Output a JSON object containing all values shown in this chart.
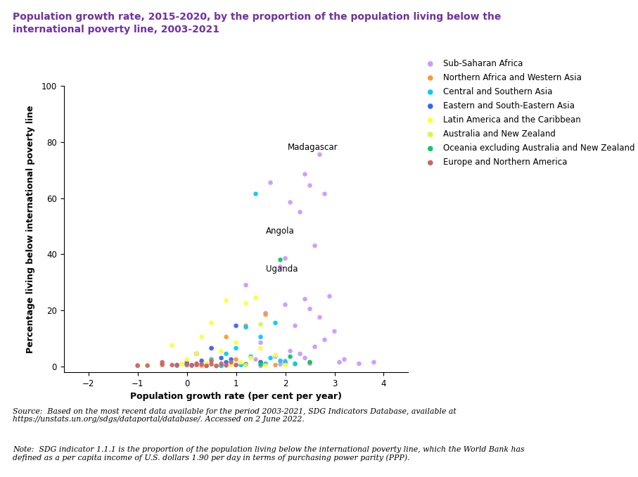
{
  "title": "Population growth rate, 2015-2020, by the proportion of the population living below the\ninternational poverty line, 2003-2021",
  "xlabel": "Population growth rate (per cent per year)",
  "ylabel": "Percentage living below international poverty line",
  "xlim": [
    -2.5,
    4.5
  ],
  "ylim": [
    -2,
    100
  ],
  "xticks": [
    -2,
    -1,
    0,
    1,
    2,
    3,
    4
  ],
  "yticks": [
    0,
    20,
    40,
    60,
    80,
    100
  ],
  "title_color": "#7030A0",
  "source_text": "Source:  Based on the most recent data available for the period 2003-2021, SDG Indicators Database, available at\nhttps://unstats.un.org/sdgs/dataportal/database/. Accessed on 2 June 2022.",
  "note_text": "Note:  SDG indicator 1.1.1 is the proportion of the population living below the international poverty line, which the World Bank has\ndefined as a per capita income of U.S. dollars 1.90 per day in terms of purchasing power parity (PPP).",
  "regions": {
    "Sub-Saharan Africa": {
      "color": "#CC99FF",
      "points": [
        [
          2.7,
          75.5
        ],
        [
          2.4,
          68.5
        ],
        [
          2.5,
          64.5
        ],
        [
          2.8,
          61.5
        ],
        [
          1.7,
          65.5
        ],
        [
          2.1,
          58.5
        ],
        [
          2.3,
          55.0
        ],
        [
          2.6,
          43.0
        ],
        [
          2.0,
          38.5
        ],
        [
          1.9,
          35.5
        ],
        [
          2.9,
          25.0
        ],
        [
          2.4,
          24.0
        ],
        [
          2.0,
          22.0
        ],
        [
          2.5,
          20.5
        ],
        [
          1.6,
          19.0
        ],
        [
          2.7,
          17.5
        ],
        [
          2.2,
          14.5
        ],
        [
          3.0,
          12.5
        ],
        [
          2.8,
          9.5
        ],
        [
          1.5,
          8.5
        ],
        [
          2.6,
          7.0
        ],
        [
          2.1,
          5.5
        ],
        [
          2.3,
          4.5
        ],
        [
          1.8,
          3.5
        ],
        [
          2.4,
          3.0
        ],
        [
          1.4,
          2.5
        ],
        [
          2.0,
          2.0
        ],
        [
          3.1,
          1.5
        ],
        [
          2.5,
          1.0
        ],
        [
          1.9,
          0.8
        ],
        [
          1.0,
          0.5
        ],
        [
          0.8,
          0.3
        ],
        [
          1.2,
          29.0
        ],
        [
          1.5,
          0.2
        ],
        [
          3.5,
          1.0
        ],
        [
          3.8,
          1.5
        ],
        [
          3.2,
          2.5
        ]
      ]
    },
    "Northern Africa and Western Asia": {
      "color": "#FF9933",
      "points": [
        [
          1.6,
          18.5
        ],
        [
          1.2,
          14.5
        ],
        [
          0.8,
          10.5
        ],
        [
          0.5,
          6.5
        ],
        [
          0.2,
          4.5
        ],
        [
          1.0,
          2.5
        ],
        [
          1.5,
          1.5
        ],
        [
          2.0,
          1.0
        ],
        [
          0.0,
          1.5
        ],
        [
          -0.5,
          0.5
        ],
        [
          0.3,
          0.3
        ],
        [
          1.8,
          0.5
        ],
        [
          2.5,
          1.5
        ],
        [
          2.2,
          0.8
        ],
        [
          -1.0,
          0.3
        ],
        [
          0.7,
          0.2
        ]
      ]
    },
    "Central and Southern Asia": {
      "color": "#00CCFF",
      "points": [
        [
          1.4,
          61.5
        ],
        [
          1.8,
          15.5
        ],
        [
          1.2,
          14.0
        ],
        [
          1.5,
          10.5
        ],
        [
          1.0,
          6.5
        ],
        [
          0.8,
          4.5
        ],
        [
          1.3,
          3.5
        ],
        [
          0.5,
          2.5
        ],
        [
          1.9,
          2.0
        ],
        [
          2.0,
          1.5
        ],
        [
          1.6,
          1.0
        ],
        [
          1.1,
          0.5
        ],
        [
          0.7,
          0.3
        ],
        [
          2.2,
          1.0
        ],
        [
          1.7,
          3.0
        ]
      ]
    },
    "Eastern and South-Eastern Asia": {
      "color": "#3366FF",
      "points": [
        [
          1.0,
          14.5
        ],
        [
          0.5,
          6.5
        ],
        [
          0.2,
          4.5
        ],
        [
          0.7,
          3.0
        ],
        [
          0.3,
          2.0
        ],
        [
          0.8,
          1.5
        ],
        [
          0.0,
          1.0
        ],
        [
          -0.2,
          0.5
        ],
        [
          0.4,
          0.3
        ],
        [
          1.2,
          0.8
        ],
        [
          0.6,
          0.2
        ],
        [
          1.5,
          1.5
        ],
        [
          0.9,
          2.5
        ],
        [
          0.1,
          0.5
        ]
      ]
    },
    "Latin America and the Caribbean": {
      "color": "#FFFF33",
      "points": [
        [
          -0.3,
          7.5
        ],
        [
          0.8,
          23.5
        ],
        [
          1.2,
          22.5
        ],
        [
          0.5,
          15.5
        ],
        [
          0.3,
          10.5
        ],
        [
          1.0,
          8.5
        ],
        [
          1.5,
          6.5
        ],
        [
          0.7,
          5.5
        ],
        [
          0.2,
          4.5
        ],
        [
          1.8,
          4.0
        ],
        [
          1.3,
          3.0
        ],
        [
          0.0,
          2.5
        ],
        [
          0.5,
          2.0
        ],
        [
          1.1,
          1.5
        ],
        [
          0.4,
          1.0
        ],
        [
          -0.1,
          0.8
        ],
        [
          0.9,
          0.5
        ],
        [
          1.6,
          0.3
        ],
        [
          2.0,
          0.5
        ],
        [
          0.6,
          0.2
        ],
        [
          -0.8,
          0.5
        ],
        [
          1.4,
          24.5
        ]
      ]
    },
    "Australia and New Zealand": {
      "color": "#CCFF33",
      "points": [
        [
          1.5,
          15.0
        ],
        [
          1.2,
          0.5
        ]
      ]
    },
    "Oceania excl. Australia and New Zealand": {
      "color": "#00CC66",
      "points": [
        [
          1.9,
          38.0
        ],
        [
          2.1,
          3.5
        ],
        [
          1.5,
          0.8
        ],
        [
          2.5,
          1.5
        ]
      ]
    },
    "Europe and Northern America": {
      "color": "#CC6666",
      "points": [
        [
          -0.5,
          1.5
        ],
        [
          0.2,
          1.0
        ],
        [
          0.5,
          0.8
        ],
        [
          0.8,
          0.5
        ],
        [
          -0.2,
          0.3
        ],
        [
          0.0,
          0.5
        ],
        [
          0.3,
          0.8
        ],
        [
          0.7,
          1.0
        ],
        [
          1.0,
          0.5
        ],
        [
          -1.0,
          0.3
        ],
        [
          -0.3,
          0.5
        ],
        [
          0.1,
          0.3
        ],
        [
          0.6,
          0.2
        ],
        [
          -0.8,
          0.3
        ],
        [
          0.4,
          0.2
        ],
        [
          0.5,
          2.0
        ],
        [
          0.9,
          1.5
        ],
        [
          -0.5,
          0.8
        ],
        [
          0.2,
          0.5
        ]
      ]
    }
  },
  "region_display_labels": {
    "Sub-Saharan Africa": "Sub-Saharan Africa",
    "Northern Africa and Western Asia": "Northern Africa and Western Asia",
    "Central and Southern Asia": "Central and Southern Asia",
    "Eastern and South-Eastern Asia": "Eastern and South-Eastern Asia",
    "Latin America and the Caribbean": "Latin America and the Caribbean",
    "Australia and New Zealand": "Australia and New Zealand",
    "Oceania excl. Australia and New Zealand": "Oceania excluding Australia and New Zealand",
    "Europe and Northern America": "Europe and Northern America"
  }
}
